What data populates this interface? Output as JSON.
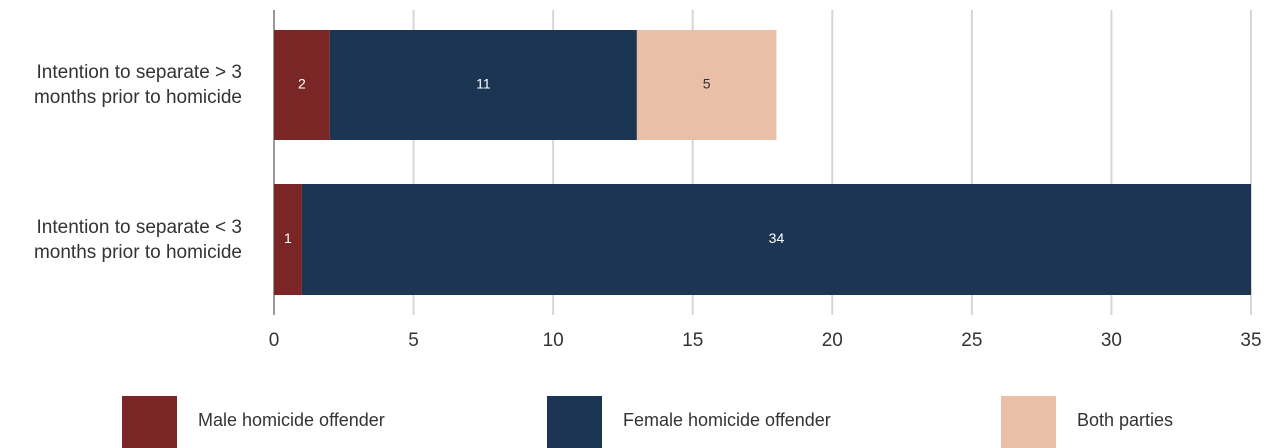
{
  "chart_data": {
    "type": "stacked-barh",
    "categories": [
      "Intention to separate > 3 months prior to homicide",
      "Intention to separate < 3 months prior to homicide"
    ],
    "series": [
      {
        "name": "Male homicide offender",
        "color": "#7b2626",
        "values": [
          2,
          1
        ]
      },
      {
        "name": "Female homicide offender",
        "color": "#1c3553",
        "values": [
          11,
          34
        ]
      },
      {
        "name": "Both parties",
        "color": "#e9bfa8",
        "values": [
          5,
          null
        ]
      }
    ],
    "xlim": [
      0,
      35
    ],
    "xticks": [
      0,
      5,
      10,
      15,
      20,
      25,
      30,
      35
    ],
    "grid": true
  }
}
